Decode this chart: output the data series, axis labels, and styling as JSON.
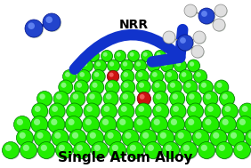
{
  "bg_color": "#ffffff",
  "title_text": "Single Atom Alloy",
  "title_fontsize": 11,
  "nrr_text": "NRR",
  "nrr_fontsize": 10,
  "fig_width": 2.82,
  "fig_height": 1.89,
  "dpi": 100,
  "ru_color_face": "#22ee00",
  "ru_color_edge": "#007700",
  "ru_highlight": "#aaffaa",
  "tm_color_face": "#cc1111",
  "tm_color_edge": "#660000",
  "n2_color": "#2244cc",
  "n2_edge": "#001188",
  "nh3_n_color": "#2244cc",
  "nh3_h_color": "#e0e0e0",
  "nh3_h_edge": "#888888",
  "arrow_color": "#1133cc",
  "arrow_linewidth": 8
}
